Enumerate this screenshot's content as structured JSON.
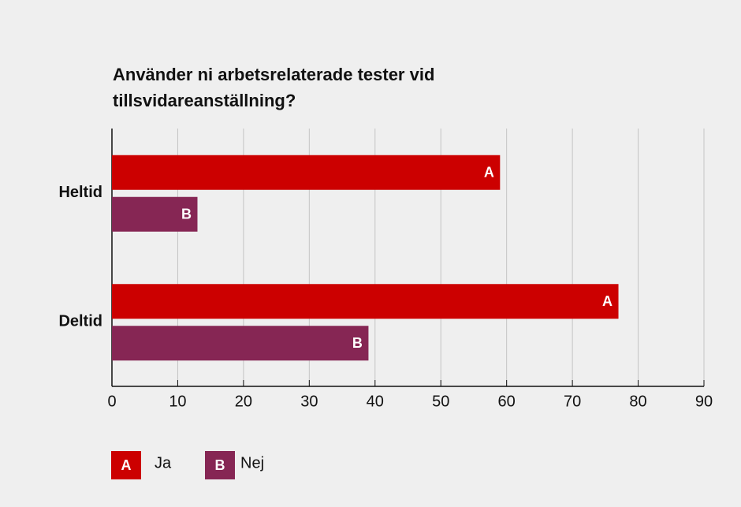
{
  "chart_data": {
    "type": "bar",
    "orientation": "horizontal",
    "title": "Använder ni arbetsrelaterade tester vid tillsvidareanställning?",
    "categories": [
      "Heltid",
      "Deltid"
    ],
    "series": [
      {
        "name": "Ja",
        "marker": "A",
        "color": "#cc0000",
        "values": [
          59,
          77
        ]
      },
      {
        "name": "Nej",
        "marker": "B",
        "color": "#862654",
        "values": [
          13,
          39
        ]
      }
    ],
    "xlim": [
      0,
      90
    ],
    "xticks": [
      0,
      10,
      20,
      30,
      40,
      50,
      60,
      70,
      80,
      90
    ],
    "grid": true
  }
}
